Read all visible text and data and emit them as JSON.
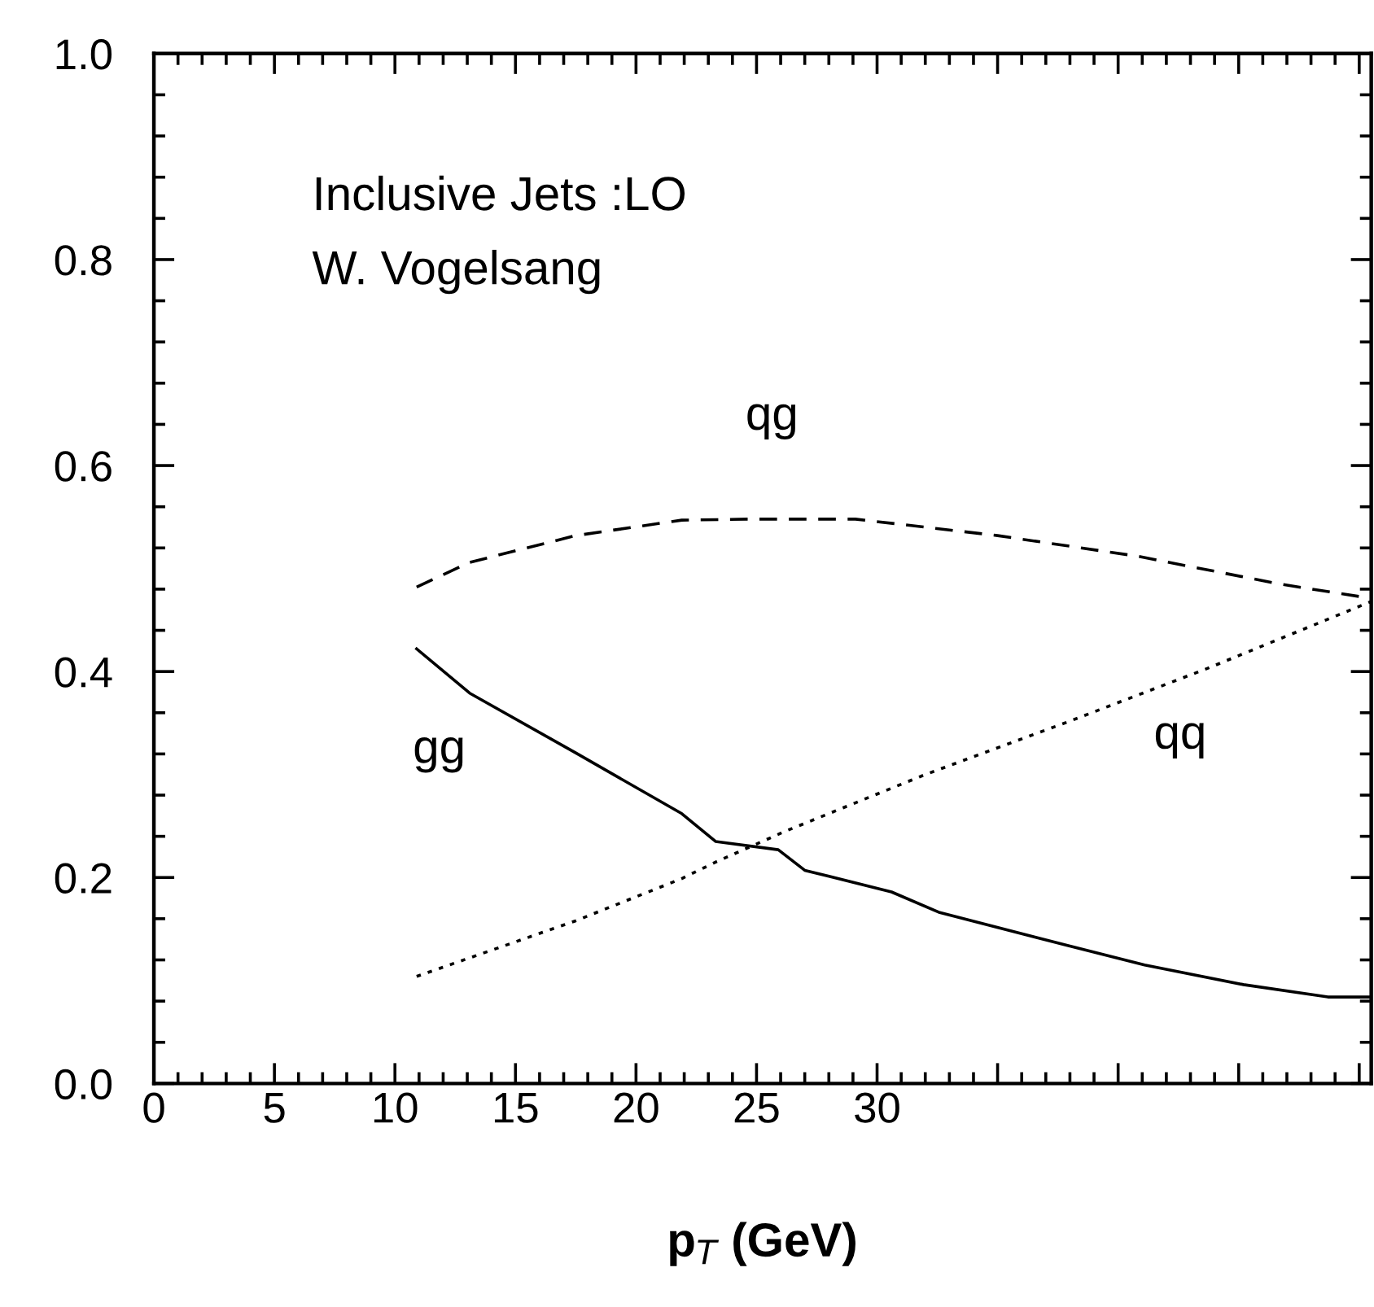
{
  "chart_data": {
    "type": "line",
    "xlabel": "p$_{T}$ (GeV)",
    "xlim": [
      0,
      50.5
    ],
    "xticks": [
      0,
      5,
      10,
      15,
      20,
      25,
      30,
      {
        "value": 35,
        "label": null
      },
      {
        "value": 40,
        "label": null
      },
      {
        "value": 45,
        "label": null
      },
      {
        "value": 50,
        "label": null
      }
    ],
    "ylim": [
      0,
      1.0
    ],
    "yticks": [
      {
        "value": 0,
        "label": "0.0"
      },
      {
        "value": 0.2,
        "label": "0.2"
      },
      {
        "value": 0.4,
        "label": "0.4"
      },
      {
        "value": 0.6,
        "label": "0.6"
      },
      {
        "value": 0.8,
        "label": "0.8"
      },
      {
        "value": 1.0,
        "label": "1.0"
      }
    ],
    "grid": false,
    "legend": false,
    "marker": "none",
    "series": [
      {
        "name": "gg",
        "color": "#000000",
        "line_style": "solid",
        "x": [
          10.9,
          13.1,
          17.5,
          21.9,
          23.3,
          25.9,
          27.0,
          30.6,
          32.6,
          37.9,
          41.1,
          45.2,
          48.7,
          50.5
        ],
        "values": [
          0.422,
          0.379,
          0.321,
          0.262,
          0.235,
          0.227,
          0.207,
          0.186,
          0.166,
          0.134,
          0.115,
          0.096,
          0.084,
          0.084
        ]
      },
      {
        "name": "qg",
        "color": "#000000",
        "line_style": "dashed",
        "x": [
          10.9,
          13.1,
          17.5,
          21.9,
          24.7,
          29.1,
          35.0,
          40.8,
          46.7,
          50.5
        ],
        "values": [
          0.482,
          0.506,
          0.532,
          0.547,
          0.548,
          0.548,
          0.532,
          0.512,
          0.485,
          0.471
        ]
      },
      {
        "name": "qq",
        "color": "#000000",
        "line_style": "dotted",
        "x": [
          10.9,
          17.5,
          21.9,
          23.3,
          26.2,
          32.0,
          37.9,
          43.7,
          50.5
        ],
        "values": [
          0.104,
          0.158,
          0.199,
          0.215,
          0.245,
          0.3,
          0.351,
          0.403,
          0.468
        ]
      }
    ],
    "annotations": [
      "Inclusive Jets :LO",
      "W. Vogelsang"
    ]
  }
}
